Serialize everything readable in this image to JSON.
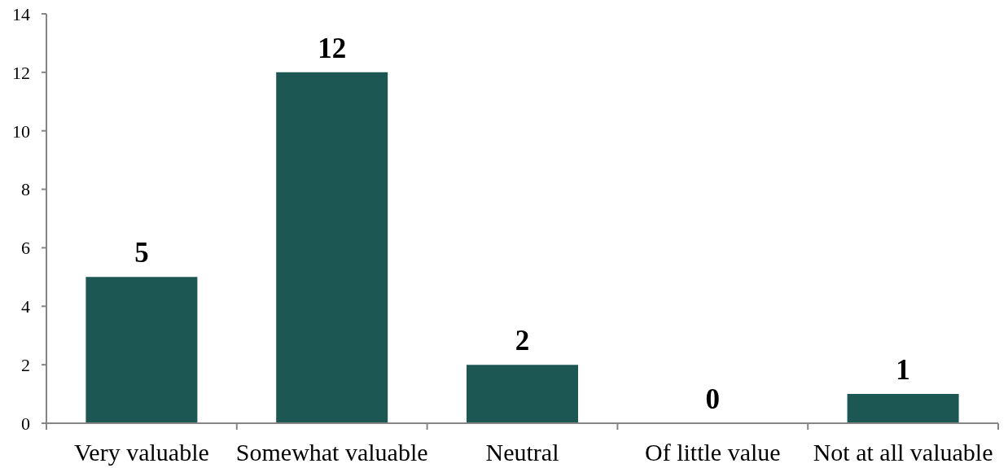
{
  "chart_data": {
    "type": "bar",
    "categories": [
      "Very valuable",
      "Somewhat valuable",
      "Neutral",
      "Of little value",
      "Not at all valuable"
    ],
    "values": [
      5,
      12,
      2,
      0,
      1
    ],
    "color": "#1d5753",
    "ylim": [
      0,
      14
    ],
    "yticks": [
      0,
      2,
      4,
      6,
      8,
      10,
      12,
      14
    ],
    "data_labels": true
  }
}
